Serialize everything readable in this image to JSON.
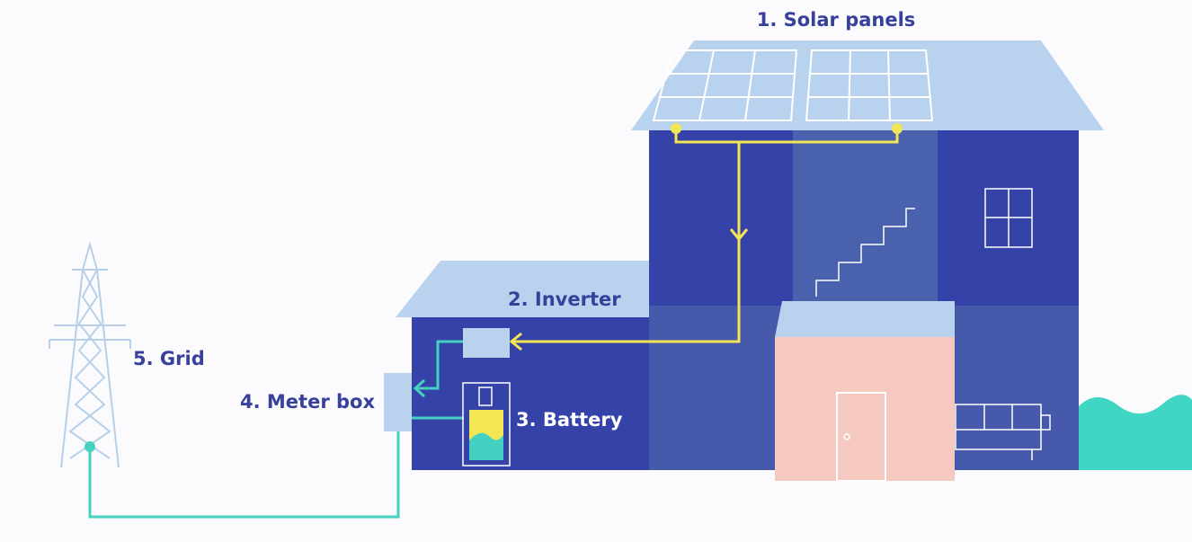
{
  "labels": [
    "1. Solar panels",
    "2. Inverter",
    "3. Battery",
    "4. Meter box",
    "5. Grid"
  ]
}
